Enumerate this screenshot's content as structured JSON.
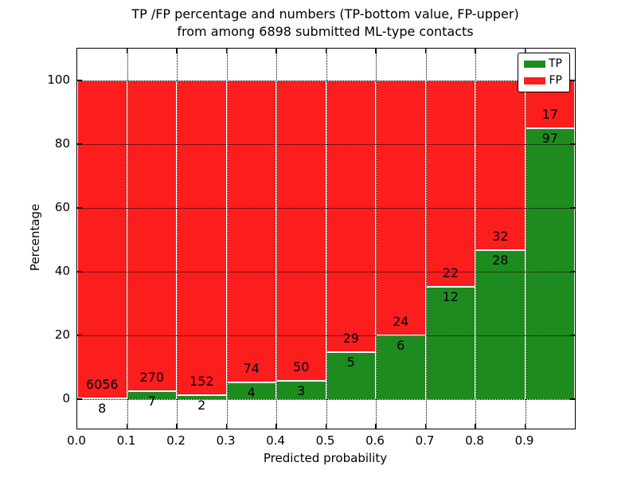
{
  "title": {
    "line1": "TP /FP percentage and numbers (TP-bottom value, FP-upper)",
    "line2": "from among 6898 submitted ML-type contacts"
  },
  "axes": {
    "xlabel": "Predicted probability",
    "ylabel": "Percentage",
    "xtick_labels": [
      "0.0",
      "0.1",
      "0.2",
      "0.3",
      "0.4",
      "0.5",
      "0.6",
      "0.7",
      "0.8",
      "0.9"
    ],
    "ytick_labels": [
      "0",
      "20",
      "40",
      "60",
      "80",
      "100"
    ],
    "ytick_values": [
      0,
      20,
      40,
      60,
      80,
      100
    ],
    "xlim": [
      0.0,
      1.0
    ],
    "ylim": [
      -9.25,
      110
    ],
    "grid_style": "dotted"
  },
  "legend": {
    "position": "upper-right",
    "items": [
      {
        "label": "TP",
        "color": "#1e8b1e"
      },
      {
        "label": "FP",
        "color": "#fc1d1d"
      }
    ]
  },
  "colors": {
    "tp_green": "#1e8b1e",
    "fp_red": "#fc1d1d",
    "bar_edge": "#ffffff",
    "text": "#000000",
    "frame": "#000000"
  },
  "chart_data": {
    "type": "bar",
    "stacked": true,
    "normalized_to_percent": true,
    "title": "TP /FP percentage and numbers (TP-bottom value, FP-upper) from among 6898 submitted ML-type contacts",
    "xlabel": "Predicted probability",
    "ylabel": "Percentage",
    "total_contacts": 6898,
    "bin_edges": [
      0.0,
      0.1,
      0.2,
      0.3,
      0.4,
      0.5,
      0.6,
      0.7,
      0.8,
      0.9,
      1.0
    ],
    "categories": [
      "0.0-0.1",
      "0.1-0.2",
      "0.2-0.3",
      "0.3-0.4",
      "0.4-0.5",
      "0.5-0.6",
      "0.6-0.7",
      "0.7-0.8",
      "0.8-0.9",
      "0.9-1.0"
    ],
    "series": [
      {
        "name": "TP",
        "color": "#1e8b1e",
        "counts": [
          8,
          7,
          2,
          4,
          3,
          5,
          6,
          12,
          28,
          97
        ]
      },
      {
        "name": "FP",
        "color": "#fc1d1d",
        "counts": [
          6056,
          270,
          152,
          74,
          50,
          29,
          24,
          22,
          32,
          17
        ]
      }
    ],
    "tp_percent": [
      0.13,
      2.53,
      1.3,
      5.13,
      5.66,
      14.71,
      20.0,
      35.29,
      46.67,
      85.09
    ],
    "fp_percent": [
      99.87,
      97.47,
      98.7,
      94.87,
      94.34,
      85.29,
      80.0,
      64.71,
      53.33,
      14.91
    ],
    "bar_value_labels": {
      "tp_bottom": [
        "8",
        "7",
        "2",
        "4",
        "3",
        "5",
        "6",
        "12",
        "28",
        "97"
      ],
      "fp_upper": [
        "6056",
        "270",
        "152",
        "74",
        "50",
        "29",
        "24",
        "22",
        "32",
        "17"
      ]
    },
    "legend_position": "upper-right",
    "grid": true
  }
}
